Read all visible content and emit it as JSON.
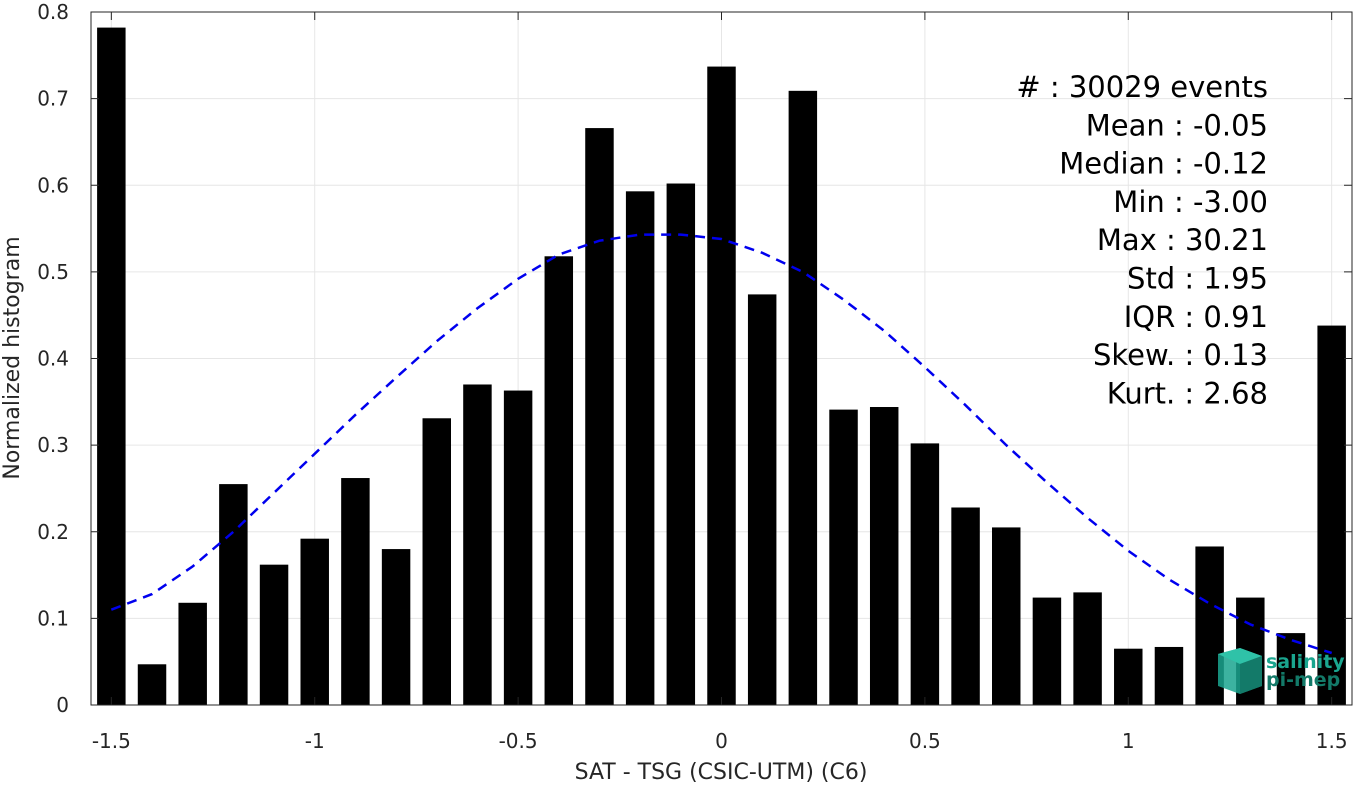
{
  "chart_data": {
    "type": "bar",
    "xlabel": "SAT - TSG (CSIC-UTM) (C6)",
    "ylabel": "Normalized histogram",
    "xlim": [
      -1.55,
      1.55
    ],
    "ylim": [
      0,
      0.8
    ],
    "x_ticks": [
      -1.5,
      -1,
      -0.5,
      0,
      0.5,
      1,
      1.5
    ],
    "x_tick_labels": [
      "-1.5",
      "-1",
      "-0.5",
      "0",
      "0.5",
      "1",
      "1.5"
    ],
    "y_ticks": [
      0,
      0.1,
      0.2,
      0.3,
      0.4,
      0.5,
      0.6,
      0.7,
      0.8
    ],
    "y_tick_labels": [
      "0",
      "0.1",
      "0.2",
      "0.3",
      "0.4",
      "0.5",
      "0.6",
      "0.7",
      "0.8"
    ],
    "grid": true,
    "bar_color": "#000000",
    "bar_width": 0.07,
    "x": [
      -1.5,
      -1.4,
      -1.3,
      -1.2,
      -1.1,
      -1.0,
      -0.9,
      -0.8,
      -0.7,
      -0.6,
      -0.5,
      -0.4,
      -0.3,
      -0.2,
      -0.1,
      0.0,
      0.1,
      0.2,
      0.3,
      0.4,
      0.5,
      0.6,
      0.7,
      0.8,
      0.9,
      1.0,
      1.1,
      1.2,
      1.3,
      1.4,
      1.5
    ],
    "values": [
      0.782,
      0.047,
      0.118,
      0.255,
      0.162,
      0.192,
      0.262,
      0.18,
      0.331,
      0.37,
      0.363,
      0.518,
      0.666,
      0.593,
      0.602,
      0.737,
      0.474,
      0.709,
      0.341,
      0.344,
      0.302,
      0.228,
      0.205,
      0.124,
      0.13,
      0.065,
      0.067,
      0.183,
      0.124,
      0.083,
      0.438
    ],
    "fit_curve": {
      "style": "dashed",
      "color": "#0000ee",
      "x": [
        -1.5,
        -1.4,
        -1.3,
        -1.2,
        -1.1,
        -1.0,
        -0.9,
        -0.8,
        -0.7,
        -0.6,
        -0.5,
        -0.4,
        -0.3,
        -0.2,
        -0.1,
        0.0,
        0.1,
        0.2,
        0.3,
        0.4,
        0.5,
        0.6,
        0.7,
        0.8,
        0.9,
        1.0,
        1.1,
        1.2,
        1.3,
        1.4,
        1.5
      ],
      "y": [
        0.11,
        0.128,
        0.16,
        0.2,
        0.245,
        0.29,
        0.335,
        0.378,
        0.42,
        0.458,
        0.492,
        0.52,
        0.536,
        0.543,
        0.543,
        0.538,
        0.522,
        0.5,
        0.468,
        0.432,
        0.39,
        0.346,
        0.3,
        0.257,
        0.216,
        0.178,
        0.145,
        0.117,
        0.093,
        0.075,
        0.06
      ]
    },
    "stats": [
      "#  : 30029 events",
      "Mean : -0.05",
      "Median : -0.12",
      "Min : -3.00",
      "Max : 30.21",
      "Std : 1.95",
      "IQR : 0.91",
      "Skew. : 0.13",
      "Kurt. : 2.68"
    ]
  },
  "logo": {
    "line1": "salinity",
    "line2": "pi-mep",
    "color": "#1aa58f"
  }
}
